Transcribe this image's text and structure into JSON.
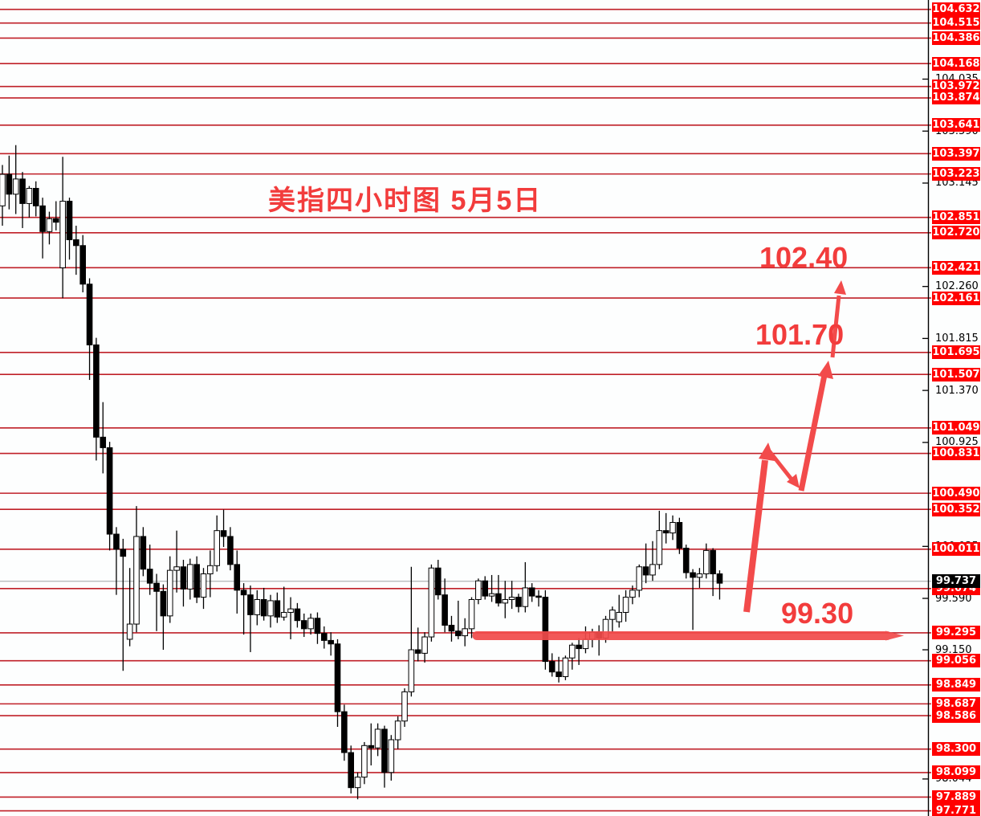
{
  "colors": {
    "background": "#fdfefe",
    "grid_line_red": "#c02028",
    "label_box_red": "#ff0000",
    "label_text_white": "#ffffff",
    "tick_text_black": "#000000",
    "current_price_box": "#000000",
    "current_price_line_gray": "#b8bcbe",
    "candle_bull_fill": "#ffffff",
    "candle_bear_fill": "#000000",
    "candle_outline": "#000000",
    "overlay_red": "#f24b4b",
    "annotation_red": "#f23c3c",
    "axis_line": "#000000"
  },
  "chart_data": {
    "type": "candlestick",
    "title": "美指四小时图  5月5日",
    "timeframe_note": "4小时",
    "current_price": "99.737",
    "ylim": [
      97.75,
      104.7
    ],
    "support_line_price": "99.295",
    "annotations": {
      "target_upper": "102.40",
      "target_mid": "101.70",
      "support": "99.30"
    },
    "y_axis_levels": [
      {
        "value": "104.632",
        "type": "red"
      },
      {
        "value": "104.515",
        "type": "red"
      },
      {
        "value": "104.386",
        "type": "red"
      },
      {
        "value": "104.168",
        "type": "red"
      },
      {
        "value": "104.035",
        "type": "tick"
      },
      {
        "value": "103.972",
        "type": "red"
      },
      {
        "value": "103.874",
        "type": "red"
      },
      {
        "value": "103.641",
        "type": "red"
      },
      {
        "value": "103.590",
        "type": "tick"
      },
      {
        "value": "103.397",
        "type": "red"
      },
      {
        "value": "103.223",
        "type": "red"
      },
      {
        "value": "103.145",
        "type": "tick"
      },
      {
        "value": "102.851",
        "type": "red"
      },
      {
        "value": "102.720",
        "type": "red"
      },
      {
        "value": "102.421",
        "type": "red"
      },
      {
        "value": "102.260",
        "type": "tick"
      },
      {
        "value": "102.161",
        "type": "red"
      },
      {
        "value": "101.815",
        "type": "tick"
      },
      {
        "value": "101.695",
        "type": "red"
      },
      {
        "value": "101.507",
        "type": "red"
      },
      {
        "value": "101.370",
        "type": "tick"
      },
      {
        "value": "101.049",
        "type": "red"
      },
      {
        "value": "100.925",
        "type": "tick"
      },
      {
        "value": "100.831",
        "type": "red"
      },
      {
        "value": "100.490",
        "type": "red"
      },
      {
        "value": "100.352",
        "type": "red"
      },
      {
        "value": "100.035",
        "type": "tick"
      },
      {
        "value": "100.011",
        "type": "red"
      },
      {
        "value": "99.674",
        "type": "red"
      },
      {
        "value": "99.590",
        "type": "tick"
      },
      {
        "value": "99.295",
        "type": "red"
      },
      {
        "value": "99.150",
        "type": "tick"
      },
      {
        "value": "99.056",
        "type": "red"
      },
      {
        "value": "98.849",
        "type": "red"
      },
      {
        "value": "98.687",
        "type": "red"
      },
      {
        "value": "98.586",
        "type": "red"
      },
      {
        "value": "98.300",
        "type": "red"
      },
      {
        "value": "98.099",
        "type": "red"
      },
      {
        "value": "98.044",
        "type": "tick"
      },
      {
        "value": "97.889",
        "type": "red"
      },
      {
        "value": "97.771",
        "type": "red"
      }
    ],
    "candles": [
      [
        102.95,
        103.3,
        102.78,
        103.22
      ],
      [
        103.22,
        103.38,
        102.92,
        103.05
      ],
      [
        103.05,
        103.47,
        102.88,
        103.18
      ],
      [
        103.18,
        103.24,
        102.76,
        102.97
      ],
      [
        102.97,
        103.12,
        102.85,
        103.1
      ],
      [
        103.1,
        103.16,
        102.86,
        102.95
      ],
      [
        102.95,
        103.02,
        102.5,
        102.73
      ],
      [
        102.73,
        102.9,
        102.62,
        102.84
      ],
      [
        102.84,
        102.99,
        102.74,
        102.81
      ],
      [
        102.42,
        103.37,
        102.16,
        102.99
      ],
      [
        102.99,
        103.02,
        102.49,
        102.66
      ],
      [
        102.66,
        102.78,
        102.36,
        102.61
      ],
      [
        102.61,
        102.7,
        102.21,
        102.28
      ],
      [
        102.28,
        102.33,
        101.46,
        101.76
      ],
      [
        101.76,
        101.82,
        100.77,
        100.97
      ],
      [
        100.97,
        101.27,
        100.66,
        100.88
      ],
      [
        100.88,
        100.93,
        100.0,
        100.14
      ],
      [
        100.14,
        100.2,
        99.62,
        100.01
      ],
      [
        100.01,
        100.1,
        98.97,
        99.95
      ],
      [
        99.24,
        99.85,
        99.18,
        99.37
      ],
      [
        99.37,
        100.38,
        99.3,
        100.12
      ],
      [
        100.12,
        100.2,
        99.78,
        99.84
      ],
      [
        99.84,
        100.05,
        99.62,
        99.72
      ],
      [
        99.72,
        99.8,
        99.31,
        99.65
      ],
      [
        99.65,
        99.71,
        99.15,
        99.44
      ],
      [
        99.44,
        99.95,
        99.38,
        99.83
      ],
      [
        99.83,
        100.17,
        99.64,
        99.86
      ],
      [
        99.86,
        99.92,
        99.52,
        99.67
      ],
      [
        99.67,
        99.93,
        99.58,
        99.88
      ],
      [
        99.88,
        99.95,
        99.55,
        99.6
      ],
      [
        99.6,
        99.85,
        99.5,
        99.8
      ],
      [
        99.8,
        100.0,
        99.6,
        99.87
      ],
      [
        99.87,
        100.3,
        99.82,
        100.17
      ],
      [
        100.17,
        100.35,
        100.03,
        100.12
      ],
      [
        100.12,
        100.2,
        99.83,
        99.88
      ],
      [
        99.88,
        100.0,
        99.46,
        99.66
      ],
      [
        99.66,
        99.72,
        99.28,
        99.62
      ],
      [
        99.62,
        99.7,
        99.13,
        99.45
      ],
      [
        99.45,
        99.66,
        99.36,
        99.58
      ],
      [
        99.58,
        99.68,
        99.4,
        99.44
      ],
      [
        99.44,
        99.62,
        99.34,
        99.57
      ],
      [
        99.57,
        99.64,
        99.38,
        99.43
      ],
      [
        99.43,
        99.69,
        99.4,
        99.47
      ],
      [
        99.47,
        99.6,
        99.24,
        99.5
      ],
      [
        99.5,
        99.55,
        99.34,
        99.4
      ],
      [
        99.4,
        99.46,
        99.26,
        99.33
      ],
      [
        99.33,
        99.46,
        99.28,
        99.42
      ],
      [
        99.42,
        99.47,
        99.2,
        99.29
      ],
      [
        99.29,
        99.35,
        99.16,
        99.23
      ],
      [
        99.23,
        99.3,
        99.1,
        99.2
      ],
      [
        99.2,
        99.24,
        98.49,
        98.62
      ],
      [
        98.62,
        98.68,
        98.2,
        98.27
      ],
      [
        98.27,
        98.33,
        97.92,
        97.97
      ],
      [
        97.97,
        98.1,
        97.87,
        98.06
      ],
      [
        98.06,
        98.36,
        98.0,
        98.33
      ],
      [
        98.33,
        98.52,
        98.16,
        98.31
      ],
      [
        98.31,
        98.52,
        98.24,
        98.47
      ],
      [
        98.47,
        98.5,
        97.97,
        98.1
      ],
      [
        98.1,
        98.42,
        98.03,
        98.38
      ],
      [
        98.38,
        98.58,
        98.3,
        98.54
      ],
      [
        98.54,
        98.82,
        98.49,
        98.79
      ],
      [
        98.79,
        99.86,
        98.75,
        99.15
      ],
      [
        99.15,
        99.34,
        99.05,
        99.12
      ],
      [
        99.12,
        99.3,
        99.04,
        99.26
      ],
      [
        99.26,
        99.88,
        99.22,
        99.85
      ],
      [
        99.85,
        99.92,
        99.58,
        99.62
      ],
      [
        99.62,
        99.76,
        99.3,
        99.36
      ],
      [
        99.36,
        99.44,
        99.22,
        99.31
      ],
      [
        99.31,
        99.57,
        99.24,
        99.27
      ],
      [
        99.27,
        99.42,
        99.18,
        99.33
      ],
      [
        99.33,
        99.6,
        99.25,
        99.58
      ],
      [
        99.58,
        99.76,
        99.54,
        99.74
      ],
      [
        99.74,
        99.78,
        99.58,
        99.61
      ],
      [
        99.61,
        99.79,
        99.56,
        99.63
      ],
      [
        99.63,
        99.79,
        99.52,
        99.55
      ],
      [
        99.55,
        99.74,
        99.42,
        99.58
      ],
      [
        99.58,
        99.74,
        99.5,
        99.6
      ],
      [
        99.6,
        99.63,
        99.47,
        99.52
      ],
      [
        99.52,
        99.9,
        99.47,
        99.68
      ],
      [
        99.68,
        99.72,
        99.56,
        99.61
      ],
      [
        99.61,
        99.66,
        99.52,
        99.6
      ],
      [
        99.6,
        99.66,
        98.98,
        99.05
      ],
      [
        99.05,
        99.12,
        98.92,
        98.96
      ],
      [
        98.96,
        99.09,
        98.87,
        98.92
      ],
      [
        98.92,
        99.1,
        98.89,
        99.08
      ],
      [
        99.08,
        99.21,
        98.98,
        99.19
      ],
      [
        99.19,
        99.25,
        99.02,
        99.16
      ],
      [
        99.16,
        99.35,
        99.12,
        99.24
      ],
      [
        99.24,
        99.33,
        99.17,
        99.3
      ],
      [
        99.3,
        99.36,
        99.1,
        99.25
      ],
      [
        99.25,
        99.44,
        99.21,
        99.41
      ],
      [
        99.41,
        99.52,
        99.3,
        99.49
      ],
      [
        99.39,
        99.62,
        99.34,
        99.47
      ],
      [
        99.47,
        99.66,
        99.39,
        99.6
      ],
      [
        99.6,
        99.7,
        99.54,
        99.66
      ],
      [
        99.66,
        99.88,
        99.6,
        99.86
      ],
      [
        99.86,
        100.06,
        99.72,
        99.79
      ],
      [
        99.79,
        100.08,
        99.74,
        99.88
      ],
      [
        99.88,
        100.34,
        99.84,
        100.17
      ],
      [
        100.17,
        100.32,
        100.06,
        100.15
      ],
      [
        100.15,
        100.3,
        100.09,
        100.24
      ],
      [
        100.24,
        100.28,
        99.97,
        100.02
      ],
      [
        100.02,
        100.05,
        99.76,
        99.81
      ],
      [
        99.81,
        99.84,
        99.32,
        99.77
      ],
      [
        99.77,
        99.85,
        99.68,
        99.8
      ],
      [
        99.8,
        100.06,
        99.76,
        100.0
      ],
      [
        100.0,
        100.02,
        99.61,
        99.8
      ],
      [
        99.8,
        99.83,
        99.58,
        99.72
      ]
    ]
  }
}
